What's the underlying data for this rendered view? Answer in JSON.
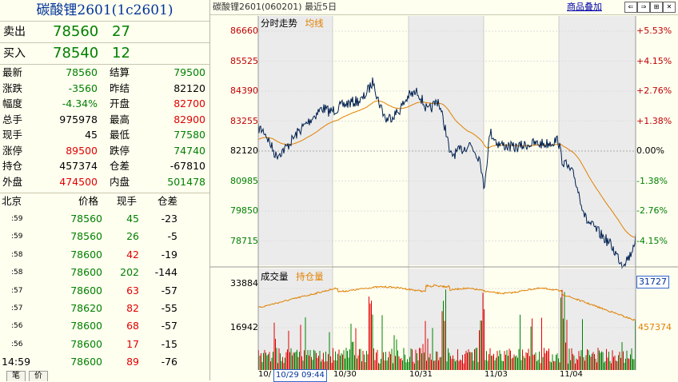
{
  "title": "碳酸锂2601(1c2601)",
  "top_bar": {
    "title": "碳酸锂2601(060201) 最近5日",
    "overlay_link": "商品叠加"
  },
  "asks": [
    {
      "label": "卖出",
      "price": "78560",
      "vol": "27"
    },
    {
      "label": "买入",
      "price": "78540",
      "vol": "12"
    }
  ],
  "stats": [
    {
      "l1": "最新",
      "v1": "78560",
      "c1": "g",
      "l2": "结算",
      "v2": "79500",
      "c2": "g"
    },
    {
      "l1": "涨跌",
      "v1": "-3560",
      "c1": "g",
      "l2": "昨结",
      "v2": "82120",
      "c2": "k"
    },
    {
      "l1": "幅度",
      "v1": "-4.34%",
      "c1": "g",
      "l2": "开盘",
      "v2": "82700",
      "c2": "r"
    },
    {
      "l1": "总手",
      "v1": "975978",
      "c1": "k",
      "l2": "最高",
      "v2": "82900",
      "c2": "r"
    },
    {
      "l1": "现手",
      "v1": "45",
      "c1": "k",
      "l2": "最低",
      "v2": "77580",
      "c2": "g"
    },
    {
      "l1": "涨停",
      "v1": "89500",
      "c1": "r",
      "l2": "跌停",
      "v2": "74740",
      "c2": "g"
    },
    {
      "l1": "持仓",
      "v1": "457374",
      "c1": "k",
      "l2": "仓差",
      "v2": "-67810",
      "c2": "k"
    },
    {
      "l1": "外盘",
      "v1": "474500",
      "c1": "r",
      "l2": "内盘",
      "v2": "501478",
      "c2": "g"
    }
  ],
  "ticks_header": {
    "time": "北京",
    "price": "价格",
    "vol": "现手",
    "oi": "仓差"
  },
  "ticks": [
    {
      "time": ":59",
      "price": "78560",
      "vol": "45",
      "vc": "g",
      "oi": "-23"
    },
    {
      "time": ":59",
      "price": "78560",
      "vol": "26",
      "vc": "g",
      "oi": "-5"
    },
    {
      "time": ":58",
      "price": "78600",
      "vol": "42",
      "vc": "r",
      "oi": "-19"
    },
    {
      "time": ":58",
      "price": "78600",
      "vol": "202",
      "vc": "g",
      "oi": "-144"
    },
    {
      "time": ":57",
      "price": "78600",
      "vol": "63",
      "vc": "r",
      "oi": "-57"
    },
    {
      "time": ":57",
      "price": "78620",
      "vol": "82",
      "vc": "r",
      "oi": "-55"
    },
    {
      "time": ":56",
      "price": "78600",
      "vol": "68",
      "vc": "r",
      "oi": "-57"
    },
    {
      "time": ":56",
      "price": "78600",
      "vol": "17",
      "vc": "r",
      "oi": "-15"
    },
    {
      "time": "14:59",
      "price": "78600",
      "vol": "89",
      "vc": "r",
      "oi": "-76"
    }
  ],
  "bottom_tabs": [
    "笔",
    "价"
  ],
  "price_panel": {
    "legend": [
      "分时走势",
      "均线"
    ],
    "left_ticks": [
      "86660",
      "85525",
      "84390",
      "83255",
      "82120",
      "80985",
      "79850",
      "78715"
    ],
    "right_ticks": [
      "+5.53%",
      "+4.15%",
      "+2.76%",
      "+1.38%",
      "0.00%",
      "-1.38%",
      "-2.76%",
      "-4.15%"
    ]
  },
  "vol_panel": {
    "legend": [
      "成交量",
      "持仓量"
    ],
    "left_ticks": [
      "33884",
      "16942"
    ],
    "right_vol_box": "31727",
    "right_oi": "457374"
  },
  "dates": [
    "10/",
    "10/29 09:44",
    "10/30",
    "10/31",
    "11/03",
    "11/04"
  ],
  "colors": {
    "price": "#002050",
    "avg": "#e08000",
    "up": "#e00000",
    "down": "#008000",
    "shade": "#ebebeb"
  }
}
